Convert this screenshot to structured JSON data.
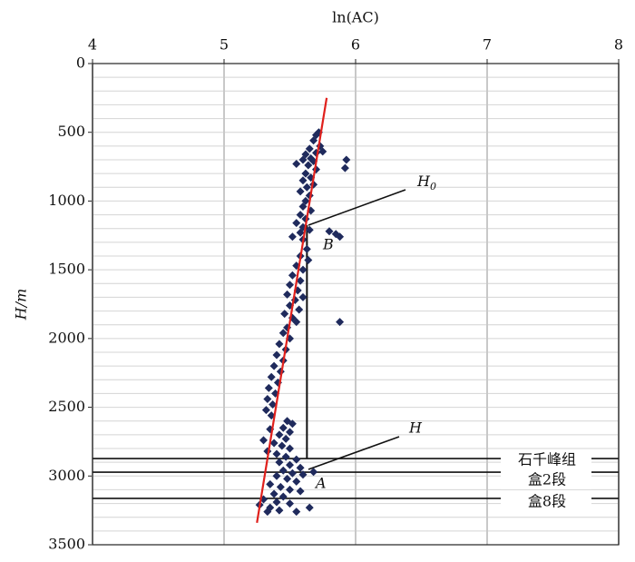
{
  "chart_data": {
    "type": "scatter",
    "x_label": "ln(AC)",
    "y_label": "H/m",
    "xlim": [
      4,
      8
    ],
    "xticks": [
      4,
      5,
      6,
      7,
      8
    ],
    "ylim": [
      0,
      3500
    ],
    "yticks": [
      0,
      500,
      1000,
      1500,
      2000,
      2500,
      3000,
      3500
    ],
    "y_inverted": true,
    "grid": true,
    "minor_grid": true,
    "series": [
      {
        "color": "#1f2a5c",
        "x": [
          5.72,
          5.7,
          5.68,
          5.73,
          5.65,
          5.7,
          5.75,
          5.62,
          5.66,
          5.6,
          5.68,
          5.55,
          5.93,
          5.92,
          5.64,
          5.7,
          5.62,
          5.66,
          5.6,
          5.68,
          5.63,
          5.58,
          5.65,
          5.62,
          5.6,
          5.66,
          5.58,
          5.62,
          5.55,
          5.6,
          5.65,
          5.58,
          5.52,
          5.8,
          5.85,
          5.88,
          5.6,
          5.63,
          5.58,
          5.64,
          5.55,
          5.6,
          5.52,
          5.58,
          5.5,
          5.56,
          5.48,
          5.54,
          5.6,
          5.5,
          5.57,
          5.46,
          5.52,
          5.88,
          5.55,
          5.48,
          5.45,
          5.5,
          5.42,
          5.47,
          5.4,
          5.45,
          5.38,
          5.43,
          5.36,
          5.41,
          5.34,
          5.39,
          5.33,
          5.37,
          5.32,
          5.36,
          5.48,
          5.52,
          5.45,
          5.5,
          5.35,
          5.42,
          5.47,
          5.3,
          5.38,
          5.44,
          5.5,
          5.33,
          5.4,
          5.47,
          5.55,
          5.42,
          5.5,
          5.58,
          5.45,
          5.52,
          5.6,
          5.68,
          5.4,
          5.48,
          5.55,
          5.35,
          5.43,
          5.5,
          5.58,
          5.38,
          5.45,
          5.3,
          5.4,
          5.5,
          5.27,
          5.35,
          5.65,
          5.42,
          5.55,
          5.33
        ],
        "y": [
          500,
          520,
          560,
          600,
          620,
          650,
          640,
          660,
          690,
          700,
          710,
          730,
          700,
          760,
          740,
          770,
          800,
          830,
          850,
          880,
          900,
          930,
          960,
          1000,
          1040,
          1070,
          1100,
          1130,
          1160,
          1190,
          1210,
          1230,
          1260,
          1220,
          1240,
          1260,
          1280,
          1350,
          1400,
          1430,
          1470,
          1500,
          1540,
          1580,
          1610,
          1650,
          1680,
          1720,
          1700,
          1760,
          1790,
          1820,
          1850,
          1880,
          1880,
          1920,
          1960,
          2000,
          2040,
          2080,
          2120,
          2160,
          2200,
          2240,
          2280,
          2320,
          2360,
          2400,
          2440,
          2480,
          2520,
          2560,
          2600,
          2620,
          2650,
          2680,
          2660,
          2700,
          2730,
          2740,
          2760,
          2780,
          2800,
          2820,
          2840,
          2860,
          2880,
          2900,
          2920,
          2940,
          2960,
          2980,
          2990,
          2970,
          3000,
          3020,
          3040,
          3060,
          3080,
          3100,
          3110,
          3130,
          3150,
          3170,
          3190,
          3200,
          3210,
          3230,
          3230,
          3250,
          3260,
          3260
        ]
      }
    ],
    "trend": {
      "color": "#e0201c",
      "x": [
        5.78,
        5.25
      ],
      "y": [
        250,
        3340
      ]
    },
    "baseline": {
      "x": [
        5.63,
        5.63
      ],
      "y": [
        1175,
        2873
      ]
    },
    "formations": [
      {
        "label": "石千峰组",
        "depth": 2873
      },
      {
        "label": "盒2段",
        "depth": 2972
      },
      {
        "label": "盒8段",
        "depth": 3163
      }
    ],
    "annotations": {
      "H0": {
        "main": "H",
        "sub": "0"
      },
      "B": "B",
      "H": "H",
      "A": "A"
    }
  }
}
